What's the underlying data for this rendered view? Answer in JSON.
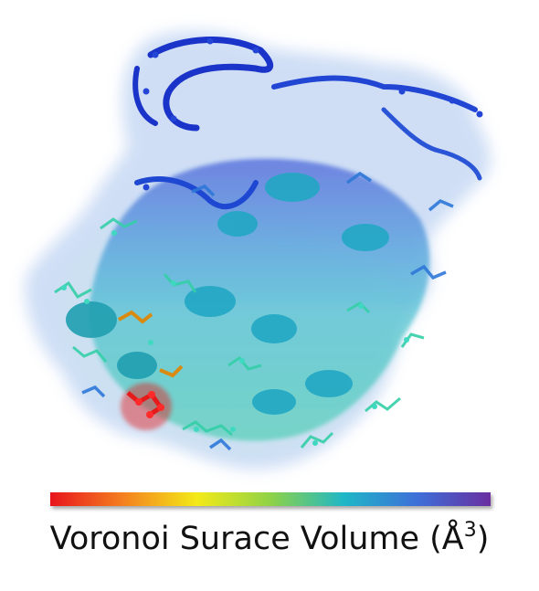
{
  "figure": {
    "caption_text": "Voronoi Surace Volume (Å",
    "caption_superscript": "3",
    "caption_close": ")"
  },
  "colormap": {
    "stops": [
      "#e8141c",
      "#f4811f",
      "#f3ea18",
      "#8fd247",
      "#1fb7c7",
      "#3d6fd8",
      "#6a2ea0"
    ]
  },
  "colors": {
    "high_blue": "#1a33c8",
    "mid_cyan": "#24b4c4",
    "teal": "#2ec9a6",
    "hotspot_red": "#e51a1a",
    "orange": "#d9860e",
    "surface_haze": "#9cc0e8"
  }
}
